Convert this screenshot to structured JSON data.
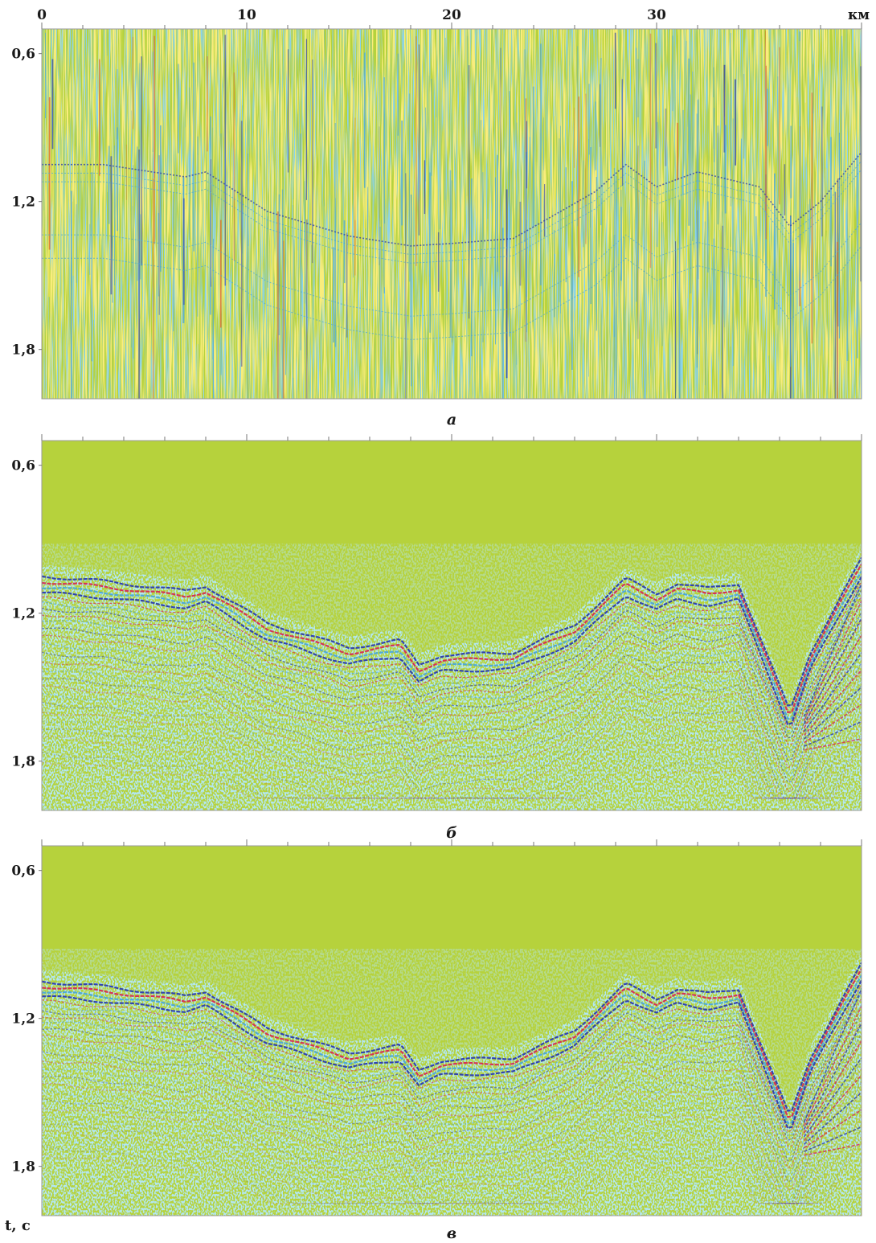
{
  "colors": {
    "background": "#b6d23c",
    "noise_light": "#8ed9d6",
    "noise_mid": "#4aa7d9",
    "blue": "#2b3bb0",
    "red": "#d62b52",
    "yellow": "#e9e44a",
    "orange": "#e0672f"
  },
  "axes": {
    "x_ticks": [
      "0",
      "10",
      "20",
      "30"
    ],
    "x_tick_values": [
      0,
      10,
      20,
      30
    ],
    "x_unit": "км",
    "x_range": [
      0,
      40
    ],
    "y_ticks": [
      "0,6",
      "1,2",
      "1,8"
    ],
    "y_tick_values": [
      0.6,
      1.2,
      1.8
    ],
    "y_range": [
      0.5,
      2.0
    ],
    "y_unit": "t, с"
  },
  "chart_data": [
    {
      "type": "heatmap",
      "panel": "а",
      "description_label": "а",
      "grid": false,
      "xlim": [
        0,
        40
      ],
      "ylim": [
        0.5,
        2.0
      ],
      "seafloor_horizon": {
        "x": [
          0,
          3,
          7,
          8,
          11,
          15,
          18,
          20,
          23,
          27,
          28.5,
          30,
          32,
          35,
          36.5,
          38,
          40
        ],
        "t": [
          1.05,
          1.05,
          1.1,
          1.08,
          1.24,
          1.34,
          1.38,
          1.37,
          1.35,
          1.16,
          1.05,
          1.14,
          1.08,
          1.14,
          1.3,
          1.2,
          1.0
        ]
      }
    },
    {
      "type": "heatmap",
      "panel": "б",
      "description_label": "б",
      "grid": false,
      "xlim": [
        0,
        40
      ],
      "ylim": [
        0.5,
        2.0
      ],
      "seafloor_horizon": {
        "x": [
          0,
          3,
          7,
          8,
          11,
          15,
          17.5,
          18.4,
          19.5,
          23,
          26,
          28.5,
          30,
          31,
          32.5,
          34,
          36.5,
          37.5,
          40
        ],
        "t": [
          1.05,
          1.07,
          1.11,
          1.09,
          1.24,
          1.34,
          1.31,
          1.41,
          1.37,
          1.36,
          1.25,
          1.06,
          1.12,
          1.08,
          1.1,
          1.08,
          1.6,
          1.36,
          0.98
        ]
      }
    },
    {
      "type": "heatmap",
      "panel": "в",
      "description_label": "в",
      "grid": false,
      "xlim": [
        0,
        40
      ],
      "ylim": [
        0.5,
        2.0
      ],
      "seafloor_horizon": {
        "x": [
          0,
          3,
          7,
          8,
          11,
          15,
          17.5,
          18.4,
          19.5,
          23,
          26,
          28.5,
          30,
          31,
          32.5,
          34,
          36.5,
          37.5,
          40
        ],
        "t": [
          1.05,
          1.07,
          1.11,
          1.09,
          1.24,
          1.34,
          1.31,
          1.41,
          1.37,
          1.36,
          1.25,
          1.06,
          1.12,
          1.08,
          1.1,
          1.08,
          1.6,
          1.36,
          0.98
        ]
      }
    }
  ]
}
